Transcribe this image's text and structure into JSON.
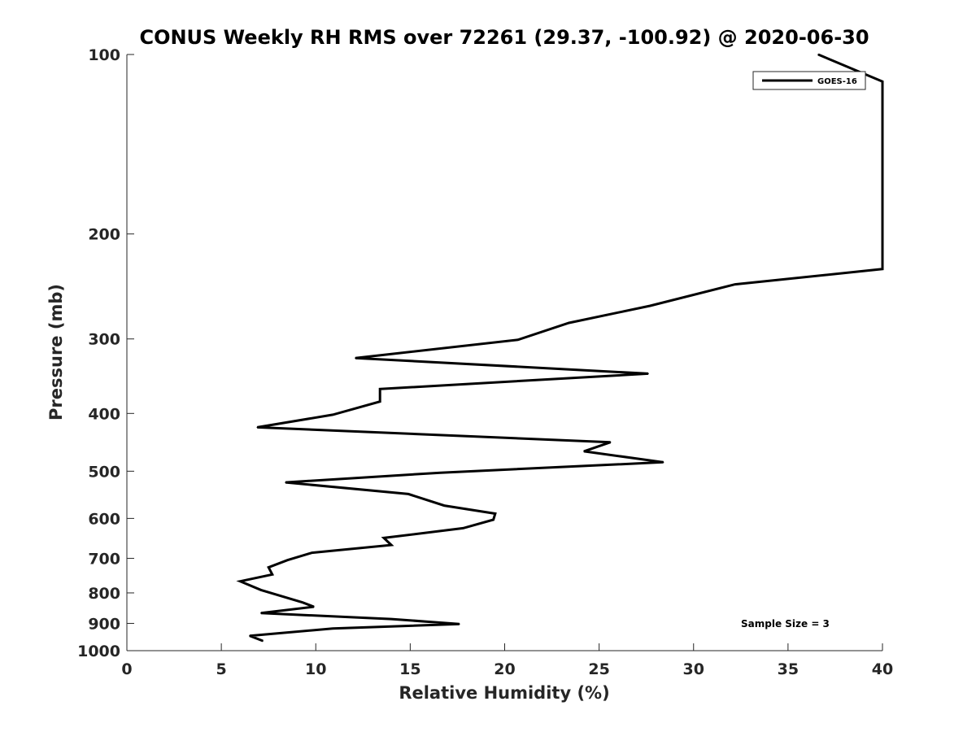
{
  "chart_data": {
    "type": "line",
    "title": "CONUS Weekly RH RMS over 72261 (29.37, -100.92) @ 2020-06-30",
    "xlabel": "Relative Humidity (%)",
    "ylabel": "Pressure (mb)",
    "xlim": [
      0,
      40
    ],
    "ylim": [
      100,
      1000
    ],
    "y_scale": "log",
    "y_reversed": true,
    "grid": false,
    "legend_position": "top-right",
    "x_ticks": [
      "0",
      "5",
      "10",
      "15",
      "20",
      "25",
      "30",
      "35",
      "40"
    ],
    "y_ticks": [
      "100",
      "200",
      "300",
      "400",
      "500",
      "600",
      "700",
      "800",
      "900",
      "1000"
    ],
    "series": [
      {
        "name": "GOES-16",
        "color": "#000000",
        "points": [
          {
            "x": 36.6,
            "y": 100
          },
          {
            "x": 40.0,
            "y": 111
          },
          {
            "x": 40.0,
            "y": 229
          },
          {
            "x": 32.2,
            "y": 243
          },
          {
            "x": 27.7,
            "y": 264
          },
          {
            "x": 23.4,
            "y": 282
          },
          {
            "x": 20.7,
            "y": 301
          },
          {
            "x": 12.1,
            "y": 323
          },
          {
            "x": 27.6,
            "y": 343
          },
          {
            "x": 13.4,
            "y": 364
          },
          {
            "x": 13.4,
            "y": 382
          },
          {
            "x": 10.9,
            "y": 402
          },
          {
            "x": 6.9,
            "y": 422
          },
          {
            "x": 25.6,
            "y": 447
          },
          {
            "x": 24.2,
            "y": 463
          },
          {
            "x": 28.4,
            "y": 483
          },
          {
            "x": 16.6,
            "y": 503
          },
          {
            "x": 8.4,
            "y": 522
          },
          {
            "x": 14.9,
            "y": 546
          },
          {
            "x": 16.8,
            "y": 571
          },
          {
            "x": 19.5,
            "y": 589
          },
          {
            "x": 19.4,
            "y": 603
          },
          {
            "x": 17.8,
            "y": 623
          },
          {
            "x": 13.6,
            "y": 647
          },
          {
            "x": 14.0,
            "y": 665
          },
          {
            "x": 9.8,
            "y": 685
          },
          {
            "x": 8.5,
            "y": 705
          },
          {
            "x": 7.5,
            "y": 725
          },
          {
            "x": 7.7,
            "y": 745
          },
          {
            "x": 6.0,
            "y": 765
          },
          {
            "x": 7.1,
            "y": 791
          },
          {
            "x": 9.3,
            "y": 830
          },
          {
            "x": 9.9,
            "y": 844
          },
          {
            "x": 7.1,
            "y": 865
          },
          {
            "x": 14.0,
            "y": 885
          },
          {
            "x": 17.6,
            "y": 902
          },
          {
            "x": 10.9,
            "y": 918
          },
          {
            "x": 6.5,
            "y": 944
          },
          {
            "x": 7.2,
            "y": 963
          }
        ]
      }
    ],
    "annotations": [
      {
        "text": "Sample Size = 3"
      }
    ]
  }
}
